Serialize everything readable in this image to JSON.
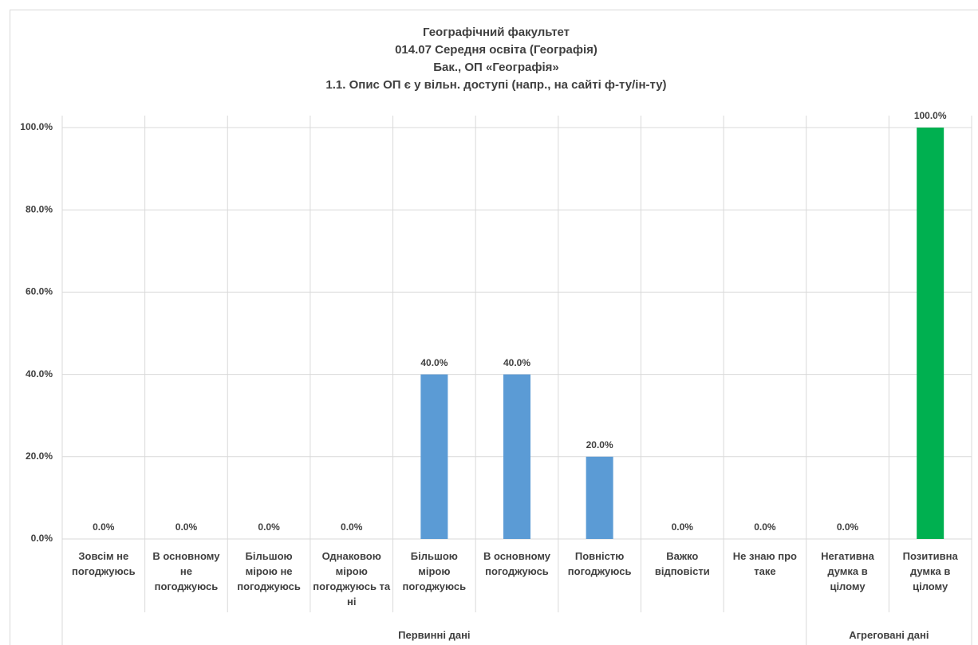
{
  "chart_data": {
    "type": "bar",
    "title": [
      "Географічний факультет",
      "014.07 Середня освіта (Географія)",
      "Бак., ОП «Географія»",
      "1.1. Опис ОП є у вільн. доступі (напр., на сайті ф-ту/ін-ту)"
    ],
    "categories": [
      "Зовсім не погоджуюсь",
      "В основному не погоджуюсь",
      "Більшою мірою не погоджуюсь",
      "Однаковою мірою погоджуюсь та ні",
      "Більшою мірою погоджуюсь",
      "В основному погоджуюсь",
      "Повністю погоджуюсь",
      "Важко відповісти",
      "Не знаю про таке",
      "Негативна думка в цілому",
      "Позитивна думка в цілому"
    ],
    "values": [
      0,
      0,
      0,
      0,
      40,
      40,
      20,
      0,
      0,
      0,
      100
    ],
    "value_labels": [
      "0.0%",
      "0.0%",
      "0.0%",
      "0.0%",
      "40.0%",
      "40.0%",
      "20.0%",
      "0.0%",
      "0.0%",
      "0.0%",
      "100.0%"
    ],
    "colors": [
      "#5b9bd5",
      "#5b9bd5",
      "#5b9bd5",
      "#5b9bd5",
      "#5b9bd5",
      "#5b9bd5",
      "#5b9bd5",
      "#5b9bd5",
      "#5b9bd5",
      "#00b050",
      "#00b050"
    ],
    "groups": [
      {
        "label": "Первинні дані",
        "count": 9
      },
      {
        "label": "Агреговані дані",
        "count": 2
      }
    ],
    "ylim": [
      0,
      100
    ],
    "yticks": [
      {
        "value": 0,
        "label": "0.0%"
      },
      {
        "value": 20,
        "label": "20.0%"
      },
      {
        "value": 40,
        "label": "40.0%"
      },
      {
        "value": 60,
        "label": "60.0%"
      },
      {
        "value": 80,
        "label": "80.0%"
      },
      {
        "value": 100,
        "label": "100.0%"
      }
    ],
    "grid": true
  }
}
